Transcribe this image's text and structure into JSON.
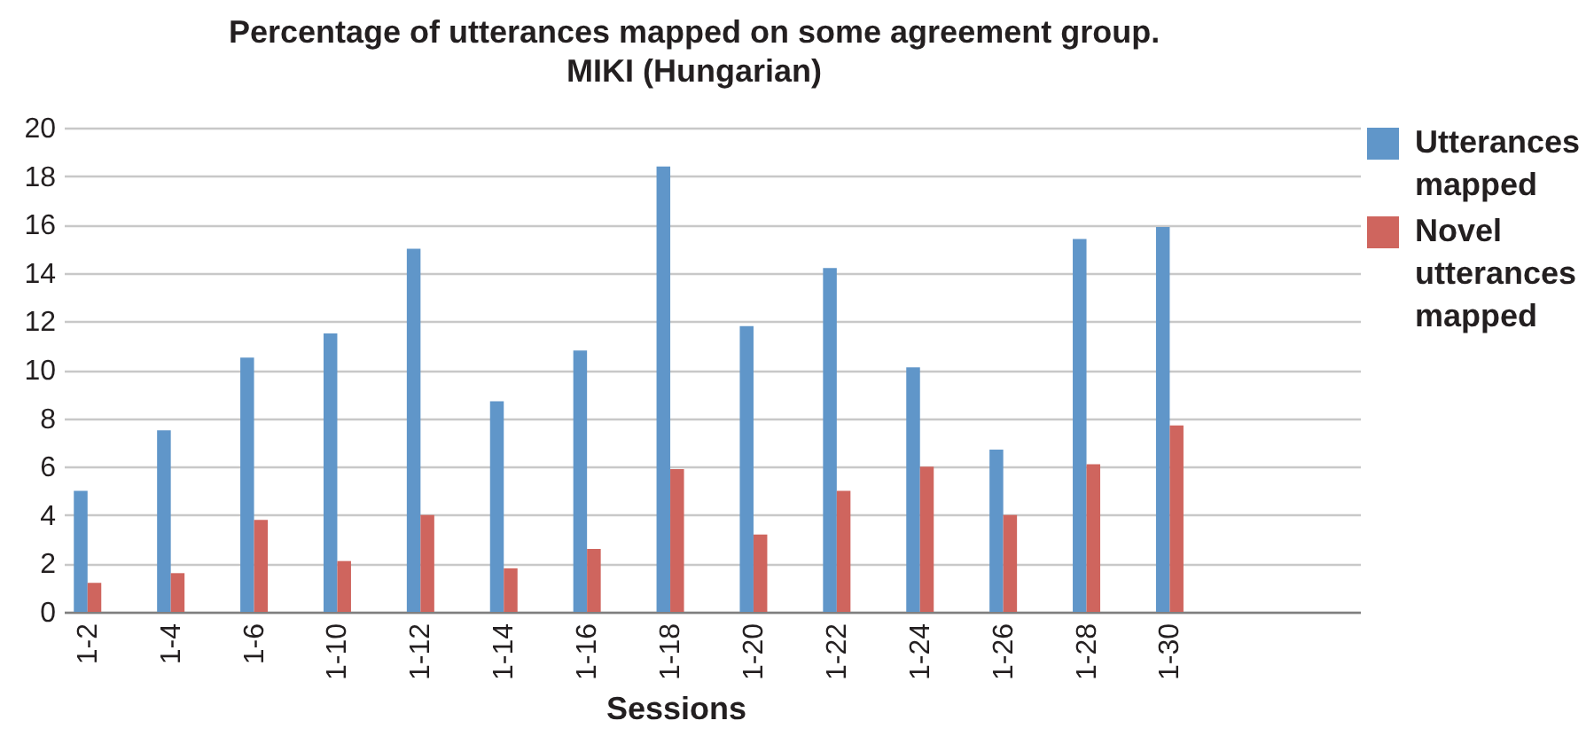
{
  "chart_data": {
    "type": "bar",
    "title": "Percentage of utterances mapped on some agreement group.",
    "subtitle": "MIKI (Hungarian)",
    "xlabel": "Sessions",
    "categories": [
      "1-2",
      "1-4",
      "1-6",
      "1-10",
      "1-12",
      "1-14",
      "1-16",
      "1-18",
      "1-20",
      "1-22",
      "1-24",
      "1-26",
      "1-28",
      "1-30",
      null,
      null
    ],
    "series": [
      {
        "name": "Utterances mapped",
        "color": "#6096c9",
        "values": [
          5.0,
          7.5,
          10.5,
          11.5,
          15.0,
          8.7,
          10.8,
          18.4,
          11.8,
          14.2,
          10.1,
          6.7,
          15.4,
          15.9,
          null,
          null
        ]
      },
      {
        "name": "Novel utterances mapped",
        "color": "#cf655e",
        "values": [
          1.2,
          1.6,
          3.8,
          2.1,
          4.0,
          1.8,
          2.6,
          5.9,
          3.2,
          5.0,
          6.0,
          4.0,
          6.1,
          7.7,
          null,
          null
        ]
      }
    ],
    "ylim": [
      0,
      20
    ],
    "yticks": [
      0,
      2,
      4,
      6,
      8,
      10,
      12,
      14,
      16,
      18,
      20
    ],
    "grid": "y",
    "legend": "top right"
  }
}
